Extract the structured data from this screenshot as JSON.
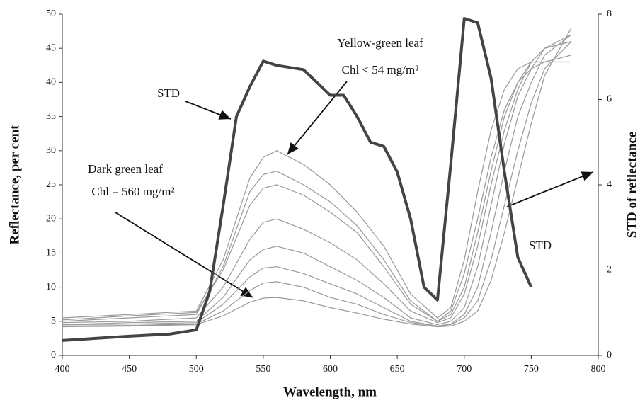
{
  "chart_data": {
    "type": "line",
    "x_label": "Wavelength, nm",
    "y_label": "Reflectance, per cent",
    "y2_label": "STD of reflectance",
    "x": [
      400,
      450,
      500,
      520,
      540,
      550,
      560,
      580,
      600,
      620,
      640,
      660,
      680,
      690,
      700,
      710,
      720,
      730,
      740,
      750,
      760,
      780
    ],
    "xlim": [
      400,
      800
    ],
    "xticks": [
      400,
      450,
      500,
      550,
      600,
      650,
      700,
      750,
      800
    ],
    "ylim": [
      0,
      50
    ],
    "yticks": [
      0,
      5,
      10,
      15,
      20,
      25,
      30,
      35,
      40,
      45,
      50
    ],
    "y2lim": [
      0,
      8
    ],
    "y2ticks": [
      0,
      2,
      4,
      6,
      8
    ],
    "series": [
      {
        "color": "#999999",
        "values": [
          5.5,
          6,
          6.5,
          14,
          26,
          29,
          30,
          28,
          25,
          21,
          16,
          9,
          5.5,
          7,
          14,
          24,
          33,
          39,
          42,
          43,
          43,
          43
        ]
      },
      {
        "color": "#999999",
        "values": [
          5,
          5.5,
          6,
          13,
          24,
          26.5,
          27,
          25,
          22.5,
          19,
          14,
          8,
          5,
          6.5,
          12,
          20,
          29,
          36,
          40,
          42,
          43,
          44
        ]
      },
      {
        "color": "#999999",
        "values": [
          5.2,
          5.8,
          6.3,
          12.5,
          22,
          24.5,
          25,
          23.5,
          21,
          18,
          13,
          7.5,
          5,
          6,
          10,
          18,
          27,
          35,
          40,
          43,
          45,
          46
        ]
      },
      {
        "color": "#999999",
        "values": [
          4.8,
          5,
          5.5,
          10,
          17,
          19.5,
          20,
          18.5,
          16.5,
          14,
          10.5,
          6.5,
          4.8,
          5.5,
          9,
          16,
          25,
          33,
          39,
          43,
          45,
          46
        ]
      },
      {
        "color": "#999999",
        "values": [
          4.5,
          4.8,
          5,
          8.5,
          14,
          15.5,
          16,
          15,
          13,
          11,
          8.5,
          5.5,
          4.5,
          5,
          7,
          13,
          22,
          31,
          38,
          42,
          45,
          47
        ]
      },
      {
        "color": "#999999",
        "values": [
          4.5,
          4.6,
          4.8,
          7.5,
          11.5,
          12.8,
          13,
          12,
          10.5,
          9,
          7,
          5,
          4.3,
          4.6,
          6,
          10,
          18,
          27,
          35,
          40,
          44,
          47
        ]
      },
      {
        "color": "#999999",
        "values": [
          4.3,
          4.4,
          4.6,
          6.5,
          9.5,
          10.6,
          10.8,
          10,
          8.5,
          7.5,
          6,
          4.8,
          4.3,
          4.5,
          5.5,
          8,
          14,
          22,
          30,
          37,
          42,
          46
        ]
      },
      {
        "color": "#999999",
        "values": [
          4.2,
          4.3,
          4.5,
          5.8,
          7.8,
          8.4,
          8.5,
          8,
          7,
          6.2,
          5.3,
          4.6,
          4.2,
          4.3,
          5,
          6.5,
          11,
          18,
          26,
          34,
          41,
          48
        ]
      },
      {
        "color": "#444444",
        "axis": "y2",
        "x": [
          400,
          450,
          480,
          500,
          510,
          520,
          530,
          540,
          550,
          560,
          580,
          600,
          610,
          620,
          630,
          640,
          650,
          660,
          670,
          680,
          690,
          700,
          710,
          720,
          730,
          740,
          750
        ],
        "values": [
          0.35,
          0.45,
          0.5,
          0.6,
          1.5,
          3.5,
          5.6,
          6.3,
          6.9,
          6.8,
          6.7,
          6.1,
          6.1,
          5.6,
          5.0,
          4.9,
          4.3,
          3.2,
          1.6,
          1.3,
          4.5,
          7.9,
          7.8,
          6.5,
          4.3,
          2.3,
          1.6
        ]
      }
    ],
    "annotations": [
      "STD",
      "Yellow-green leaf",
      "Chl < 54 mg/m²",
      "Dark green leaf",
      "Chl = 560 mg/m²",
      "STD"
    ]
  }
}
